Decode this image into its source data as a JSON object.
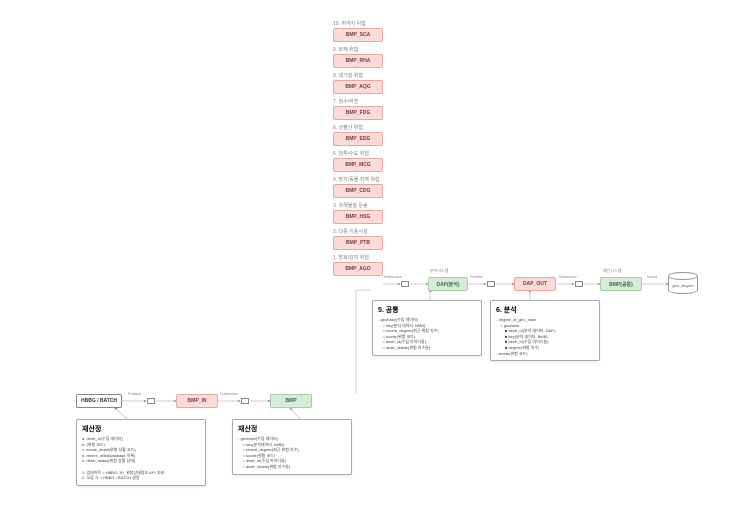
{
  "stack": [
    {
      "num": "10",
      "label": "취약지 위험",
      "name": "BMP_SCA"
    },
    {
      "num": "9",
      "label": "화재 위험",
      "name": "BMP_RHA"
    },
    {
      "num": "8",
      "label": "대기질 위험",
      "name": "BMP_AQG"
    },
    {
      "num": "7",
      "label": "침수/하천",
      "name": "BMP_FDG"
    },
    {
      "num": "6",
      "label": "산불산 위험",
      "name": "BMP_EDG"
    },
    {
      "num": "6",
      "label": "침투/수도 위험",
      "name": "BMP_MCG"
    },
    {
      "num": "4",
      "label": "망치/동물 지역 위험",
      "name": "BMP_CDG"
    },
    {
      "num": "3",
      "label": "유해물질 운송",
      "name": "BMP_HSG"
    },
    {
      "num": "2",
      "label": "다중 이용시설",
      "name": "BMP_PTB"
    },
    {
      "num": "1",
      "label": "방호/감지 위험",
      "name": "BMP_AGO"
    }
  ],
  "flow": {
    "hbbg": "HBBG / BATCH",
    "bmp_in": "BMP_IN",
    "bmp": "BMP",
    "dap": "DAP(분석)",
    "dap_label": "분석시스템",
    "dap_out": "DAP_OUT",
    "bmp_common": "BMP(공통)",
    "bmp_common_label": "메인시스템",
    "db": "geo_degree",
    "pub": "Publish",
    "sub": "Subscribe",
    "insert": "Insert"
  },
  "note_common": {
    "title": "5. 공통",
    "body": "- geohash(수집 데이터)\n    ○ key(분석 데이터, BMB)\n    ○ recent_degree(최근 위험 지수)\n    ○ scode(위험 코드)\n    ○ destr_id(수집 아이디들)\n    ○ destr_iddate(위험 지수들)"
  },
  "note_analysis": {
    "title": "6. 분석",
    "body": "- degree_of_geo_hash\n    ○ geohash\n        ■ destr_id(분석 데이터, DAP)\n        ■ key(분석 데이터, BMB)\n        ■ destr_id(수집 아이디들)\n        ■ degree(위험 지수)\n- scode(위험 코드)"
  },
  "note_recalc1": {
    "title": "재산정",
    "body": "a. destr_id(수집 데이터)\nb. (위험 코드)\nc. scode_detail(위험 상황 코드)\nd. recent_idlist(database 목록)\ne. destr_status(위험 상황 상태)\n\n1. 업데이트 > HBBG: 30_위험상태정보 API 조회\n2. 오류 시 > HBBG / BATCH 설정"
  },
  "note_recalc2": {
    "title": "재산정",
    "body": "- geohash(수집 데이터)\n    ○ key(분석데이터, BMB)\n    ○ recent_degree(최근 위험 지수)\n    ○ scode(위험 코드)\n    ○ destr_id(수집 아이디들)\n    ○ destr_iddate(위험 지수들)"
  },
  "colors": {
    "pink": "#fadbd8",
    "green": "#d7ebd7",
    "outline": "#ffffff"
  }
}
